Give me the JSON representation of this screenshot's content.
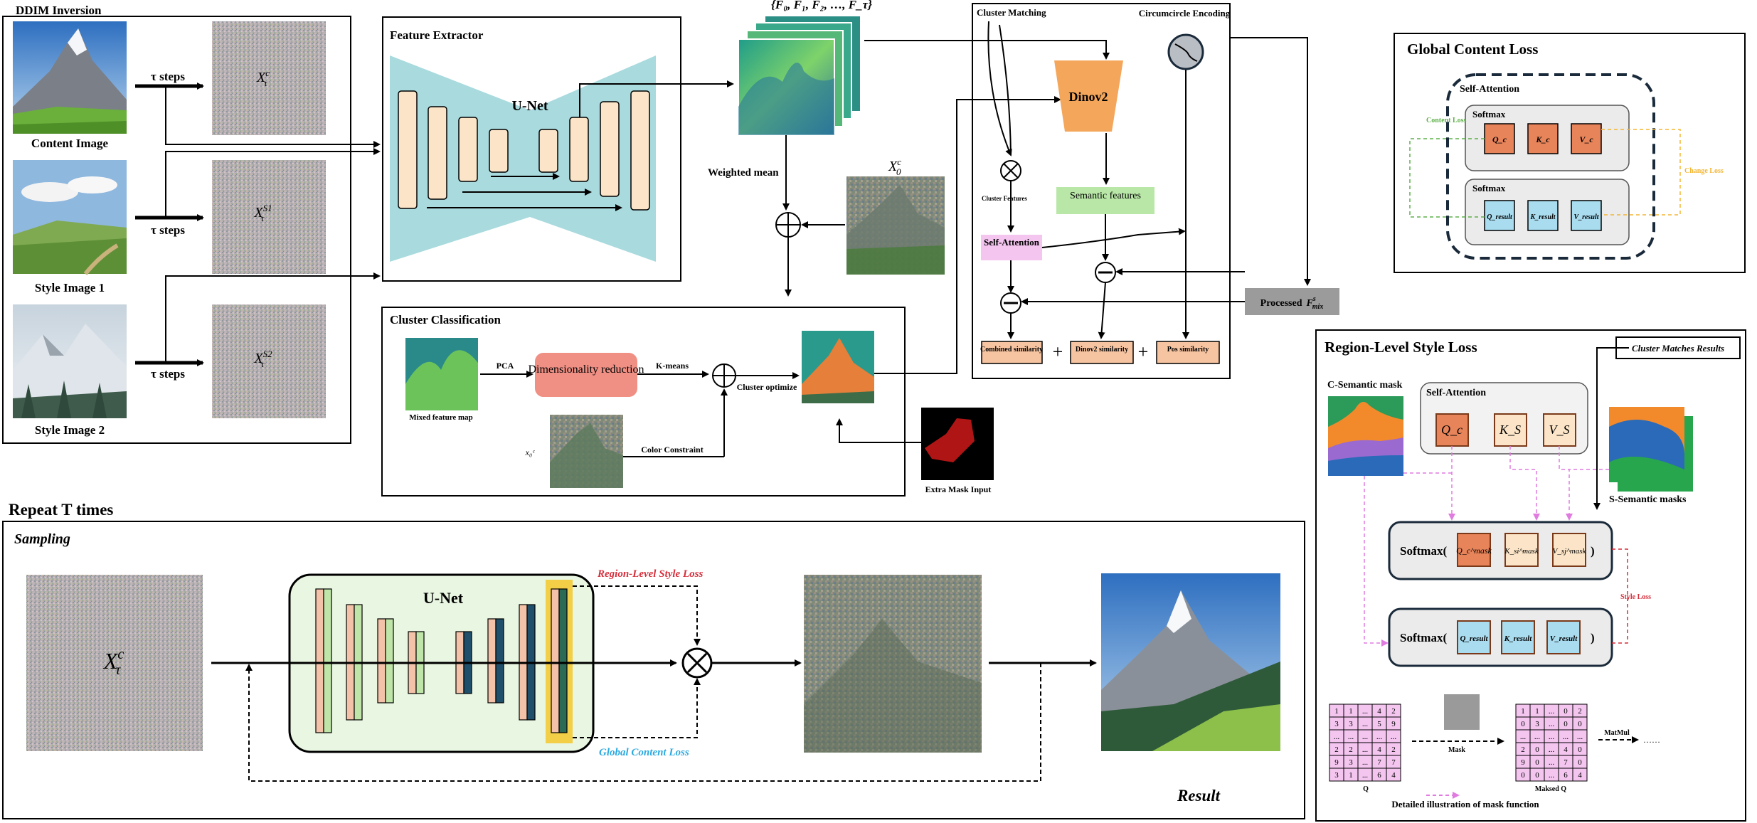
{
  "ddim": {
    "title": "DDIM Inversion",
    "rows": [
      {
        "image_label": "Content Image",
        "arrow_label": "τ steps",
        "latent": "X",
        "latent_sup": "c",
        "latent_sub": "τ"
      },
      {
        "image_label": "Style Image 1",
        "arrow_label": "τ steps",
        "latent": "X",
        "latent_sup": "S1",
        "latent_sub": "τ"
      },
      {
        "image_label": "Style Image 2",
        "arrow_label": "τ steps",
        "latent": "X",
        "latent_sup": "S2",
        "latent_sub": "τ"
      }
    ]
  },
  "feature_extractor": {
    "title": "Feature Extractor",
    "unet_label": "U-Net"
  },
  "features_set": "{F₀, F₁, F₂, …, F_τ}",
  "weighted_mean": "Weighted mean",
  "x0c": {
    "main": "X",
    "sup": "c",
    "sub": "0"
  },
  "cluster_matching": {
    "title": "Cluster Matching",
    "circumcircle": "Circumcircle Encoding",
    "dinov2": "Dinov2",
    "cluster_features": "Cluster Features",
    "semantic_features": "Semantic features",
    "self_attention": "Self-Attention",
    "processed_label": "Processed",
    "processed_sym": "F",
    "processed_sup": "s",
    "processed_sub": "mix",
    "sims": [
      "Combined similarity",
      "Dinov2 similarity",
      "Pos similarity"
    ],
    "plus": "+"
  },
  "cluster_classification": {
    "title": "Cluster Classification",
    "mixed_map": "Mixed feature map",
    "pca": "PCA",
    "dim_reduction": "Dimensionality reduction",
    "kmeans": "K-means",
    "cluster_optimize": "Cluster optimize",
    "color_constraint": "Color Constraint",
    "x0c_small": "x₀ᶜ",
    "extra_mask": "Extra Mask Input"
  },
  "global_content_loss": {
    "title": "Global Content Loss",
    "self_attention": "Self-Attention",
    "softmax": "Softmax",
    "content_loss": "Content Loss",
    "change_loss": "Change Loss",
    "top_row": [
      "Q_c",
      "K_c",
      "V_c"
    ],
    "bottom_row": [
      "Q_result",
      "K_result",
      "V_result"
    ]
  },
  "region_loss": {
    "title": "Region-Level Style Loss",
    "cluster_results": "Cluster Matches Results",
    "c_mask": "C-Semantic mask",
    "s_masks": "S-Semantic masks",
    "self_attention": "Self-Attention",
    "sa_tokens": [
      "Q_c",
      "K_S",
      "V_S"
    ],
    "softmax_open": "Softmax(",
    "softmax_close": ")",
    "mask_tokens": [
      "Q_c^mask",
      "K_si^mask",
      "V_sj^mask"
    ],
    "result_tokens": [
      "Q_result",
      "K_result",
      "V_result"
    ],
    "style_loss": "Style Loss",
    "q_matrix": [
      [
        "1",
        "1",
        "...",
        "4",
        "2"
      ],
      [
        "3",
        "3",
        "...",
        "5",
        "9"
      ],
      [
        "...",
        "...",
        "...",
        "...",
        "..."
      ],
      [
        "2",
        "2",
        "...",
        "4",
        "2"
      ],
      [
        "9",
        "3",
        "...",
        "7",
        "7"
      ],
      [
        "3",
        "1",
        "...",
        "6",
        "4"
      ]
    ],
    "masked_q": [
      [
        "1",
        "1",
        "...",
        "0",
        "2"
      ],
      [
        "0",
        "3",
        "...",
        "0",
        "0"
      ],
      [
        "...",
        "...",
        "...",
        "...",
        "..."
      ],
      [
        "2",
        "0",
        "...",
        "4",
        "0"
      ],
      [
        "9",
        "0",
        "...",
        "7",
        "0"
      ],
      [
        "0",
        "0",
        "...",
        "6",
        "4"
      ]
    ],
    "q_label": "Q",
    "mask_label": "Mask",
    "masked_q_label": "Maksed Q",
    "matmul": "MatMul",
    "dots": "……",
    "caption": "Detailed illustration of mask function"
  },
  "sampling": {
    "repeat": "Repeat T times",
    "title": "Sampling",
    "unet_label": "U-Net",
    "region_loss": "Region-Level Style Loss",
    "global_loss": "Global Content Loss",
    "result": "Result",
    "latent": "X",
    "latent_sup": "c",
    "latent_sub": "τ"
  },
  "colors": {
    "unet_cyan": "#a8dade",
    "orange": "#f4a65a",
    "salmon": "#f08f84",
    "green_light": "#b9e7a8",
    "pink": "#f3c5ef",
    "sim_box": "#f7c4a1",
    "gray": "#9b9b9b",
    "q_orange": "#e8845a",
    "kv_peach": "#fbe4c7",
    "result_blue": "#a9dcef",
    "navy": "#1a2a3a",
    "red_dashed": "#d62f3c",
    "blue_text": "#2ba9df",
    "magenta_dashed": "#e07be0",
    "green_dashed": "#5fb04a",
    "yellow_dashed": "#f3b633"
  }
}
